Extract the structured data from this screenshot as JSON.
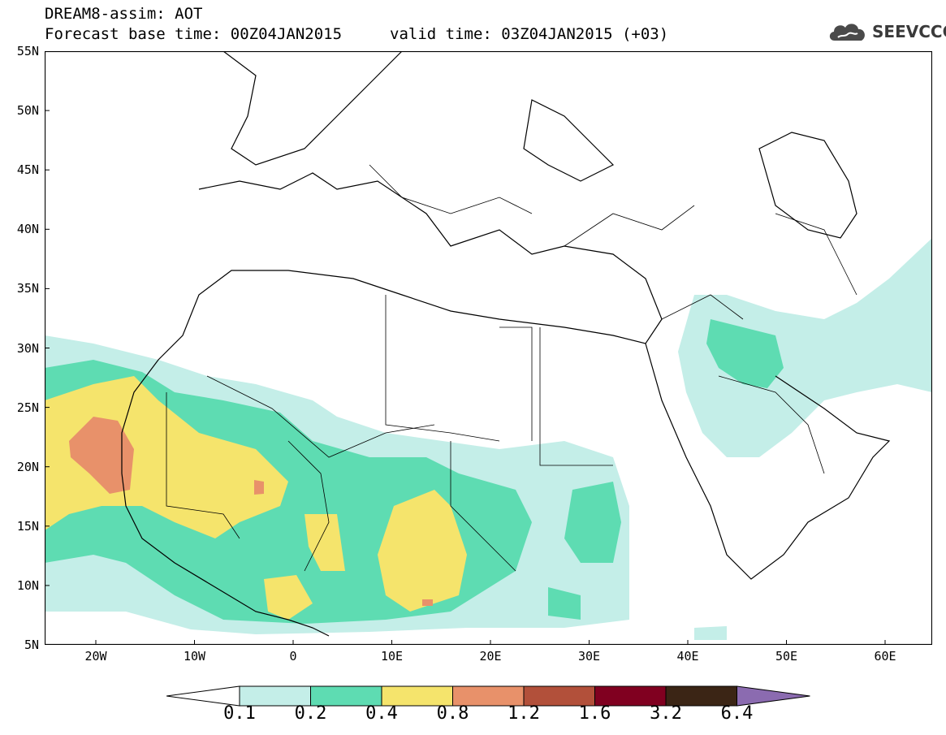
{
  "title": {
    "line1": "DREAM8-assim: AOT",
    "line2": "Forecast base time: 00Z04JAN2015",
    "valid": "valid time: 03Z04JAN2015 (+03)"
  },
  "logo": {
    "text": "SEEVCCC",
    "icon": "cloud-icon"
  },
  "axes": {
    "lat_labels": [
      "55N",
      "50N",
      "45N",
      "40N",
      "35N",
      "30N",
      "25N",
      "20N",
      "15N",
      "10N",
      "5N"
    ],
    "lon_labels": [
      "20W",
      "10W",
      "0",
      "10E",
      "20E",
      "30E",
      "40E",
      "50E",
      "60E"
    ]
  },
  "legend": {
    "labels": [
      "0.1",
      "0.2",
      "0.4",
      "0.8",
      "1.2",
      "1.6",
      "3.2",
      "6.4"
    ],
    "colors": [
      "#c4eee8",
      "#5edcb2",
      "#f5e46c",
      "#e8916a",
      "#b2503a",
      "#800020",
      "#3b2515",
      "#8b6bb0"
    ]
  },
  "field_colors": {
    "level1": "#c4eee8",
    "level2": "#5edcb2",
    "level3": "#f5e46c",
    "level4": "#e8916a"
  }
}
